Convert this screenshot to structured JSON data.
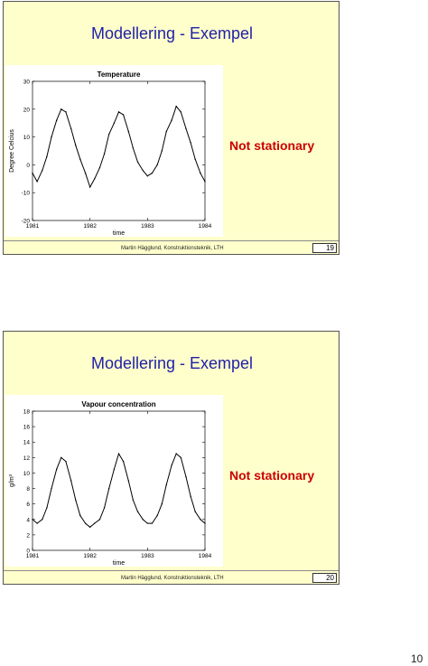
{
  "slides": [
    {
      "title": "Modellering - Exempel",
      "note": "Not stationary",
      "footer": "Martin Hägglund, Konstruktionsteknik, LTH",
      "number": "19"
    },
    {
      "title": "Modellering - Exempel",
      "note": "Not stationary",
      "footer": "Martin Hägglund, Konstruktionsteknik, LTH",
      "number": "20"
    }
  ],
  "page_number": "10",
  "colors": {
    "slide_bg": "#ffffcc",
    "title": "#1f1fa8",
    "note": "#cc0000",
    "line": "#000000"
  },
  "chart_data": [
    {
      "type": "line",
      "title": "Temperature",
      "xlabel": "time",
      "ylabel": "Degree Celcius",
      "xlim": [
        1981,
        1984
      ],
      "ylim": [
        -20,
        30
      ],
      "xticks": [
        "1981",
        "1982",
        "1983",
        "1984"
      ],
      "yticks": [
        "-20",
        "-10",
        "0",
        "10",
        "20",
        "30"
      ],
      "series": [
        {
          "x": [
            1981.0,
            1981.08,
            1981.17,
            1981.25,
            1981.33,
            1981.42,
            1981.5,
            1981.58,
            1981.67,
            1981.75,
            1981.83,
            1981.92,
            1982.0,
            1982.08,
            1982.17,
            1982.25,
            1982.33,
            1982.42,
            1982.5,
            1982.58,
            1982.67,
            1982.75,
            1982.83,
            1982.92,
            1983.0,
            1983.08,
            1983.17,
            1983.25,
            1983.33,
            1983.42,
            1983.5,
            1983.58,
            1983.67,
            1983.75,
            1983.83,
            1983.92,
            1984.0
          ],
          "y": [
            -3,
            -6,
            -2,
            3,
            10,
            16,
            20,
            19,
            13,
            7,
            2,
            -3,
            -8,
            -5,
            -1,
            4,
            11,
            15,
            19,
            18,
            12,
            6,
            1,
            -2,
            -4,
            -3,
            0,
            5,
            12,
            16,
            21,
            19,
            13,
            8,
            2,
            -3,
            -6
          ]
        }
      ]
    },
    {
      "type": "line",
      "title": "Vapour concentration",
      "xlabel": "time",
      "ylabel": "g/m³",
      "xlim": [
        1981,
        1984
      ],
      "ylim": [
        0,
        18
      ],
      "xticks": [
        "1981",
        "1982",
        "1983",
        "1984"
      ],
      "yticks": [
        "0",
        "2",
        "4",
        "6",
        "8",
        "10",
        "12",
        "14",
        "16",
        "18"
      ],
      "series": [
        {
          "x": [
            1981.0,
            1981.08,
            1981.17,
            1981.25,
            1981.33,
            1981.42,
            1981.5,
            1981.58,
            1981.67,
            1981.75,
            1981.83,
            1981.92,
            1982.0,
            1982.08,
            1982.17,
            1982.25,
            1982.33,
            1982.42,
            1982.5,
            1982.58,
            1982.67,
            1982.75,
            1982.83,
            1982.92,
            1983.0,
            1983.08,
            1983.17,
            1983.25,
            1983.33,
            1983.42,
            1983.5,
            1983.58,
            1983.67,
            1983.75,
            1983.83,
            1983.92,
            1984.0
          ],
          "y": [
            4,
            3.5,
            4,
            5.5,
            8,
            10.5,
            12,
            11.5,
            9,
            6.5,
            4.5,
            3.5,
            3,
            3.5,
            4,
            5.5,
            8,
            10.5,
            12.5,
            11.5,
            9,
            6.5,
            5,
            4,
            3.5,
            3.5,
            4.5,
            6,
            8.5,
            11,
            12.5,
            12,
            9.5,
            7,
            5,
            4,
            3.5
          ]
        }
      ]
    }
  ]
}
